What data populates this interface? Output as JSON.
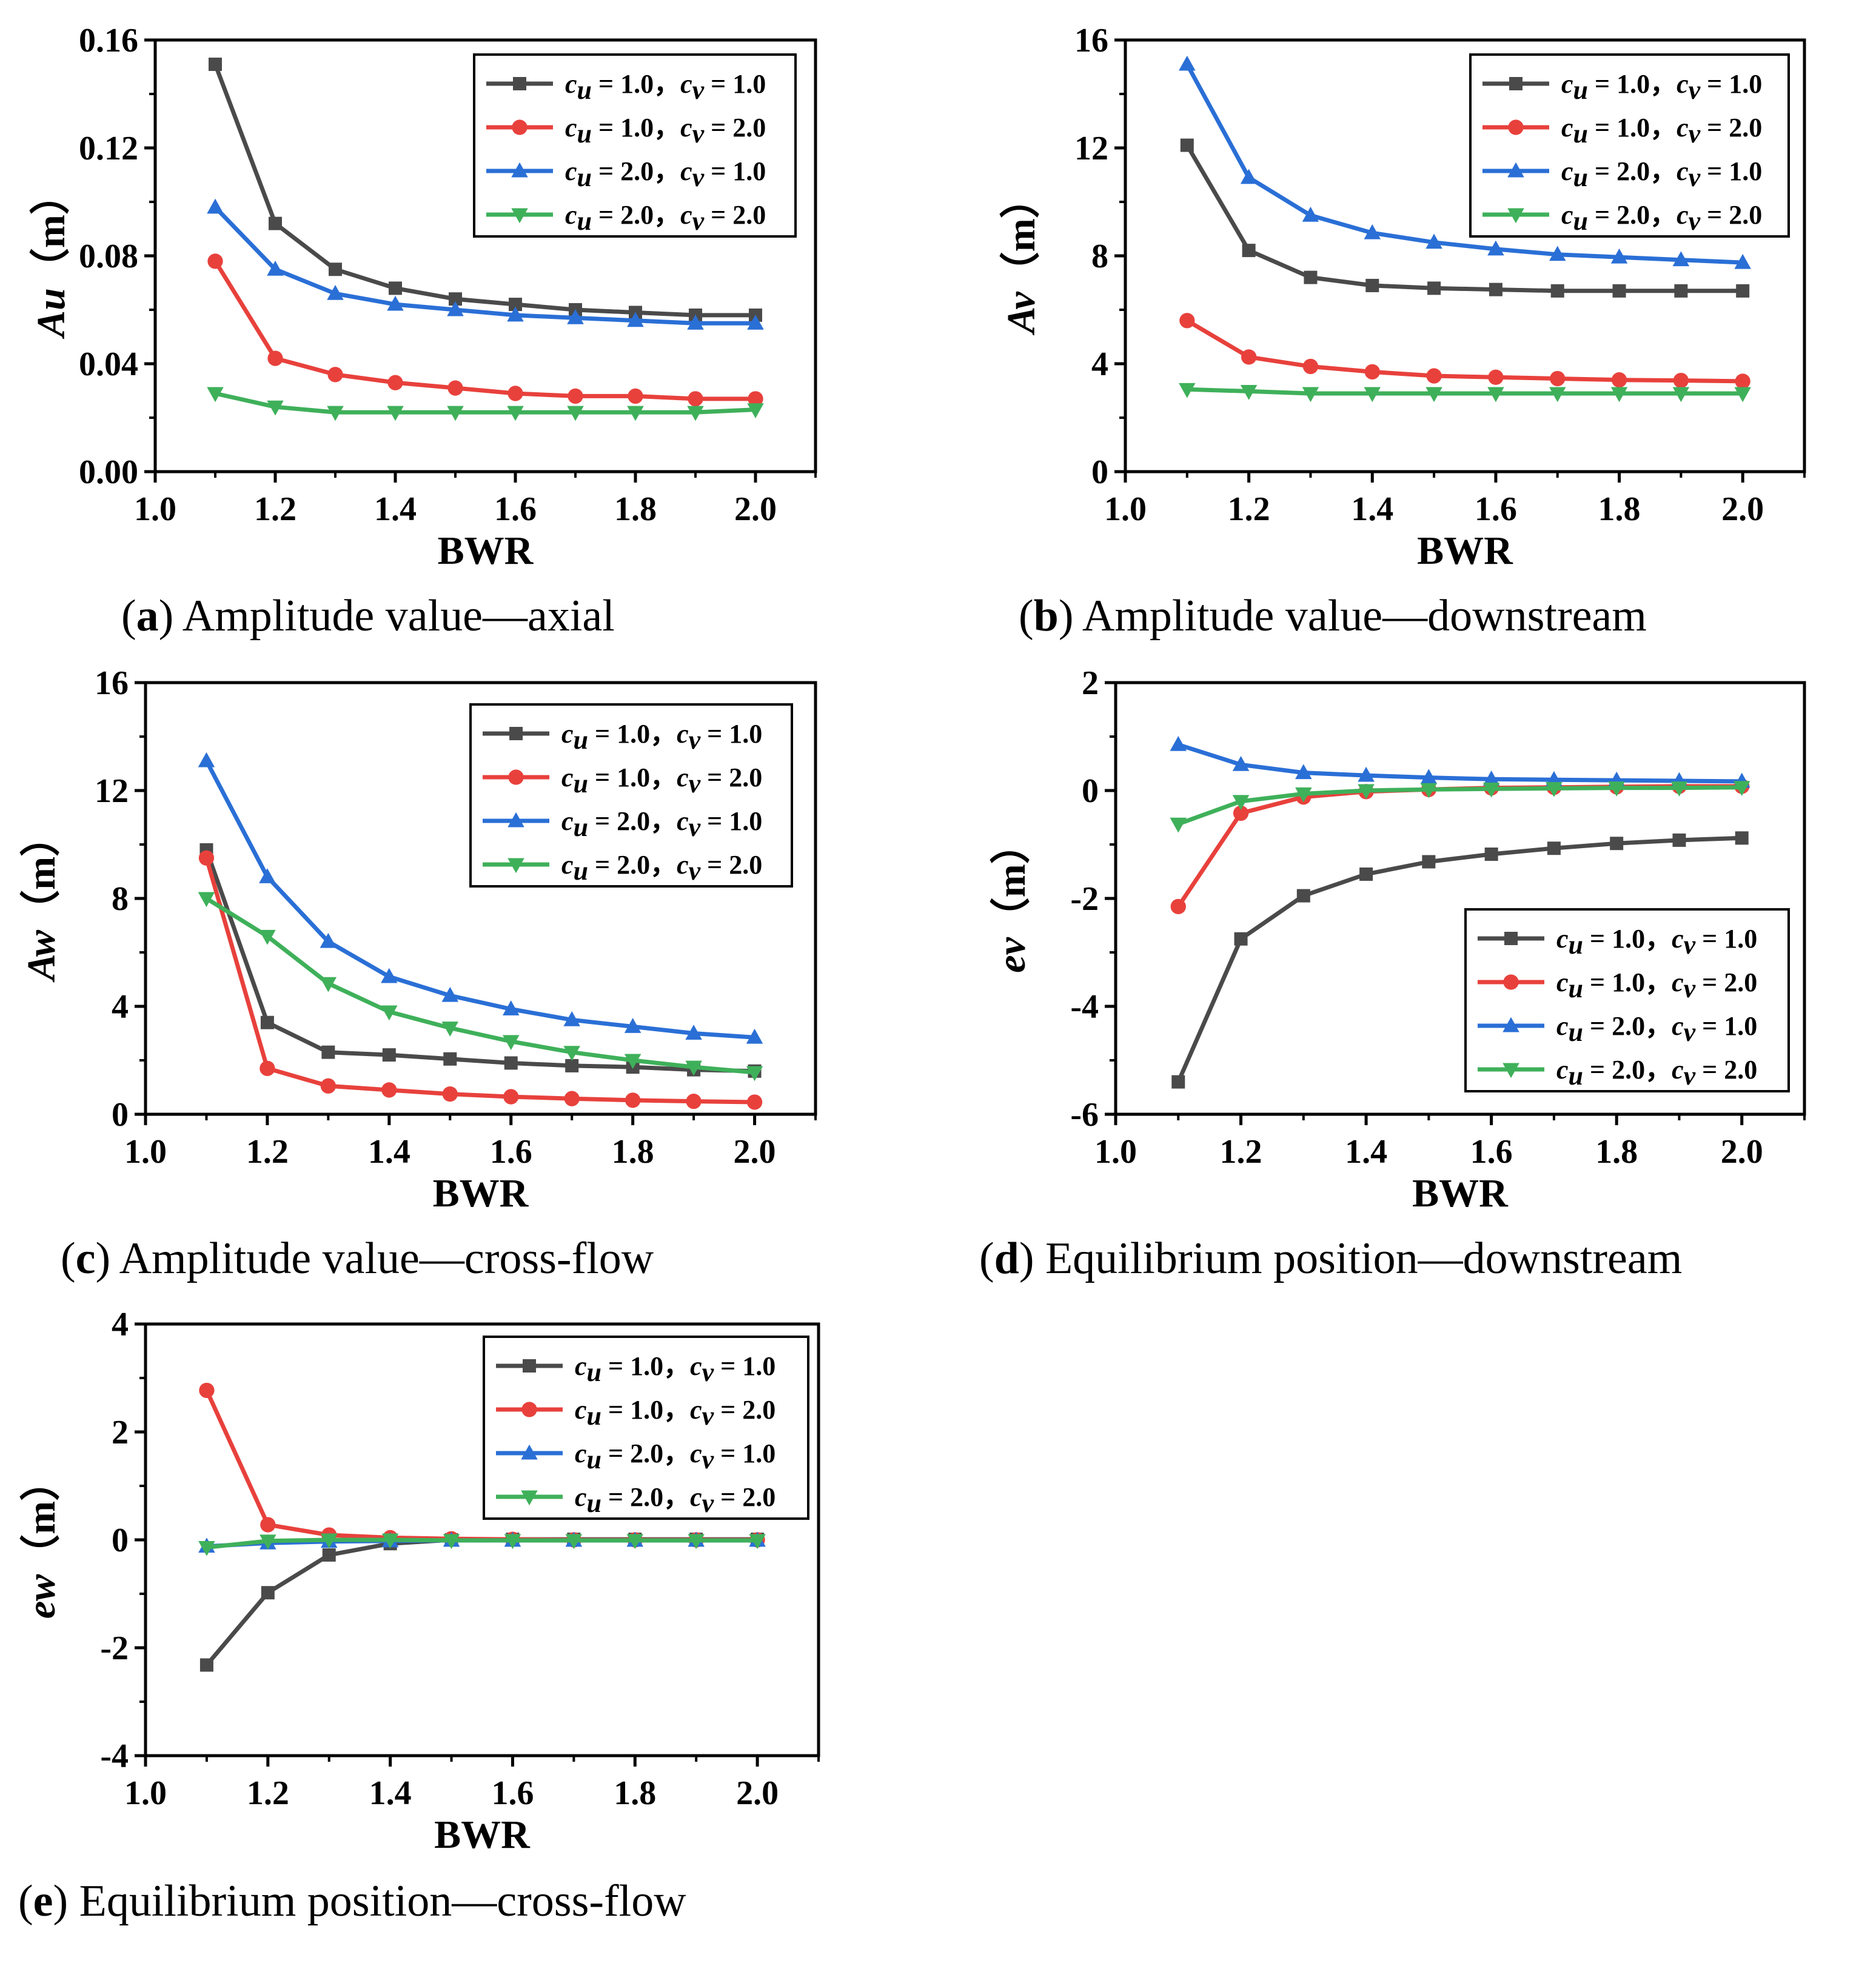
{
  "figure": {
    "x_axis_label": "BWR",
    "x_ticks": [
      "1.0",
      "1.2",
      "1.4",
      "1.6",
      "1.8",
      "2.0"
    ],
    "series_names": [
      [
        "c",
        "u",
        " = 1.0，",
        "c",
        "v",
        " = 1.0"
      ],
      [
        "c",
        "u",
        " = 1.0，",
        "c",
        "v",
        " = 2.0"
      ],
      [
        "c",
        "u",
        " = 2.0，",
        "c",
        "v",
        " = 1.0"
      ],
      [
        "c",
        "u",
        " = 2.0，",
        "c",
        "v",
        " = 2.0"
      ]
    ],
    "series_colors": [
      "#4a4a4a",
      "#e8413c",
      "#2a6fd6",
      "#3fb05a"
    ],
    "series_markers": [
      "square",
      "circle",
      "triangle-up",
      "triangle-down"
    ]
  },
  "chart_data": [
    {
      "id": "a",
      "type": "line",
      "caption_letter": "a",
      "caption_text": "Amplitude value—axial",
      "ylabel_var": "Au",
      "ylabel_unit": "（m）",
      "xlabel": "BWR",
      "xlim": [
        1.0,
        2.1
      ],
      "ylim": [
        0.0,
        0.16
      ],
      "y_ticks": [
        "0.00",
        "0.04",
        "0.08",
        "0.12",
        "0.16"
      ],
      "y_tick_values": [
        0.0,
        0.04,
        0.08,
        0.12,
        0.16
      ],
      "legend_position": "top-right",
      "x": [
        1.1,
        1.2,
        1.3,
        1.4,
        1.5,
        1.6,
        1.7,
        1.8,
        1.9,
        2.0
      ],
      "series": [
        {
          "name": "c_u = 1.0, c_v = 1.0",
          "values": [
            0.151,
            0.092,
            0.075,
            0.068,
            0.064,
            0.062,
            0.06,
            0.059,
            0.058,
            0.058
          ]
        },
        {
          "name": "c_u = 1.0, c_v = 2.0",
          "values": [
            0.078,
            0.042,
            0.036,
            0.033,
            0.031,
            0.029,
            0.028,
            0.028,
            0.027,
            0.027
          ]
        },
        {
          "name": "c_u = 2.0, c_v = 1.0",
          "values": [
            0.098,
            0.075,
            0.066,
            0.062,
            0.06,
            0.058,
            0.057,
            0.056,
            0.055,
            0.055
          ]
        },
        {
          "name": "c_u = 2.0, c_v = 2.0",
          "values": [
            0.029,
            0.024,
            0.022,
            0.022,
            0.022,
            0.022,
            0.022,
            0.022,
            0.022,
            0.023
          ]
        }
      ]
    },
    {
      "id": "b",
      "type": "line",
      "caption_letter": "b",
      "caption_text": "Amplitude value—downstream",
      "ylabel_var": "Av",
      "ylabel_unit": "（m）",
      "xlabel": "BWR",
      "xlim": [
        1.0,
        2.1
      ],
      "ylim": [
        0,
        16
      ],
      "y_ticks": [
        "0",
        "4",
        "8",
        "12",
        "16"
      ],
      "y_tick_values": [
        0,
        4,
        8,
        12,
        16
      ],
      "legend_position": "top-right",
      "x": [
        1.1,
        1.2,
        1.3,
        1.4,
        1.5,
        1.6,
        1.7,
        1.8,
        1.9,
        2.0
      ],
      "series": [
        {
          "name": "c_u = 1.0, c_v = 1.0",
          "values": [
            12.1,
            8.2,
            7.2,
            6.9,
            6.8,
            6.75,
            6.7,
            6.7,
            6.7,
            6.7
          ]
        },
        {
          "name": "c_u = 1.0, c_v = 2.0",
          "values": [
            5.6,
            4.25,
            3.9,
            3.7,
            3.55,
            3.5,
            3.45,
            3.4,
            3.38,
            3.35
          ]
        },
        {
          "name": "c_u = 2.0, c_v = 1.0",
          "values": [
            15.1,
            10.9,
            9.5,
            8.85,
            8.5,
            8.25,
            8.05,
            7.95,
            7.85,
            7.75
          ]
        },
        {
          "name": "c_u = 2.0, c_v = 2.0",
          "values": [
            3.05,
            2.98,
            2.9,
            2.9,
            2.9,
            2.9,
            2.9,
            2.9,
            2.9,
            2.9
          ]
        }
      ]
    },
    {
      "id": "c",
      "type": "line",
      "caption_letter": "c",
      "caption_text": "Amplitude value—cross-flow",
      "ylabel_var": "Aw",
      "ylabel_unit": "（m）",
      "xlabel": "BWR",
      "xlim": [
        1.0,
        2.1
      ],
      "ylim": [
        0,
        16
      ],
      "y_ticks": [
        "0",
        "4",
        "8",
        "12",
        "16"
      ],
      "y_tick_values": [
        0,
        4,
        8,
        12,
        16
      ],
      "legend_position": "top-right",
      "x": [
        1.1,
        1.2,
        1.3,
        1.4,
        1.5,
        1.6,
        1.7,
        1.8,
        1.9,
        2.0
      ],
      "series": [
        {
          "name": "c_u = 1.0, c_v = 1.0",
          "values": [
            9.8,
            3.4,
            2.3,
            2.2,
            2.05,
            1.9,
            1.8,
            1.75,
            1.65,
            1.6
          ]
        },
        {
          "name": "c_u = 1.0, c_v = 2.0",
          "values": [
            9.5,
            1.7,
            1.05,
            0.9,
            0.75,
            0.65,
            0.58,
            0.52,
            0.48,
            0.45
          ]
        },
        {
          "name": "c_u = 2.0, c_v = 1.0",
          "values": [
            13.1,
            8.8,
            6.4,
            5.1,
            4.4,
            3.9,
            3.5,
            3.25,
            3.0,
            2.85
          ]
        },
        {
          "name": "c_u = 2.0, c_v = 2.0",
          "values": [
            8.0,
            6.6,
            4.85,
            3.8,
            3.2,
            2.7,
            2.3,
            2.0,
            1.75,
            1.55
          ]
        }
      ]
    },
    {
      "id": "d",
      "type": "line",
      "caption_letter": "d",
      "caption_text": "Equilibrium position—downstream",
      "ylabel_var": "ev",
      "ylabel_unit": "（m）",
      "xlabel": "BWR",
      "xlim": [
        1.0,
        2.1
      ],
      "ylim": [
        -6,
        2
      ],
      "y_ticks": [
        "-6",
        "-4",
        "-2",
        "0",
        "2"
      ],
      "y_tick_values": [
        -6,
        -4,
        -2,
        0,
        2
      ],
      "legend_position": "bottom-right",
      "x": [
        1.1,
        1.2,
        1.3,
        1.4,
        1.5,
        1.6,
        1.7,
        1.8,
        1.9,
        2.0
      ],
      "series": [
        {
          "name": "c_u = 1.0, c_v = 1.0",
          "values": [
            -5.4,
            -2.75,
            -1.95,
            -1.55,
            -1.32,
            -1.18,
            -1.07,
            -0.98,
            -0.92,
            -0.88
          ]
        },
        {
          "name": "c_u = 1.0, c_v = 2.0",
          "values": [
            -2.15,
            -0.42,
            -0.12,
            -0.02,
            0.02,
            0.05,
            0.06,
            0.07,
            0.08,
            0.08
          ]
        },
        {
          "name": "c_u = 2.0, c_v = 1.0",
          "values": [
            0.85,
            0.48,
            0.33,
            0.28,
            0.24,
            0.21,
            0.2,
            0.19,
            0.18,
            0.17
          ]
        },
        {
          "name": "c_u = 2.0, c_v = 2.0",
          "values": [
            -0.62,
            -0.2,
            -0.06,
            0.0,
            0.02,
            0.03,
            0.04,
            0.05,
            0.05,
            0.06
          ]
        }
      ]
    },
    {
      "id": "e",
      "type": "line",
      "caption_letter": "e",
      "caption_text": "Equilibrium position—cross-flow",
      "ylabel_var": "ew",
      "ylabel_unit": "（m）",
      "xlabel": "BWR",
      "xlim": [
        1.0,
        2.1
      ],
      "ylim": [
        -4,
        4
      ],
      "y_ticks": [
        "-4",
        "-2",
        "0",
        "2",
        "4"
      ],
      "y_tick_values": [
        -4,
        -2,
        0,
        2,
        4
      ],
      "legend_position": "top-right",
      "x": [
        1.1,
        1.2,
        1.3,
        1.4,
        1.5,
        1.6,
        1.7,
        1.8,
        1.9,
        2.0
      ],
      "series": [
        {
          "name": "c_u = 1.0, c_v = 1.0",
          "values": [
            -2.32,
            -0.98,
            -0.28,
            -0.07,
            0.0,
            0.01,
            0.01,
            0.01,
            0.01,
            0.01
          ]
        },
        {
          "name": "c_u = 1.0, c_v = 2.0",
          "values": [
            2.77,
            0.28,
            0.09,
            0.04,
            0.02,
            0.01,
            0.0,
            0.0,
            0.0,
            0.0
          ]
        },
        {
          "name": "c_u = 2.0, c_v = 1.0",
          "values": [
            -0.12,
            -0.06,
            -0.03,
            -0.02,
            -0.01,
            -0.01,
            -0.01,
            -0.01,
            -0.01,
            -0.01
          ]
        },
        {
          "name": "c_u = 2.0, c_v = 2.0",
          "values": [
            -0.14,
            -0.02,
            0.0,
            0.0,
            -0.01,
            -0.01,
            -0.01,
            -0.01,
            -0.01,
            -0.01
          ]
        }
      ]
    }
  ]
}
